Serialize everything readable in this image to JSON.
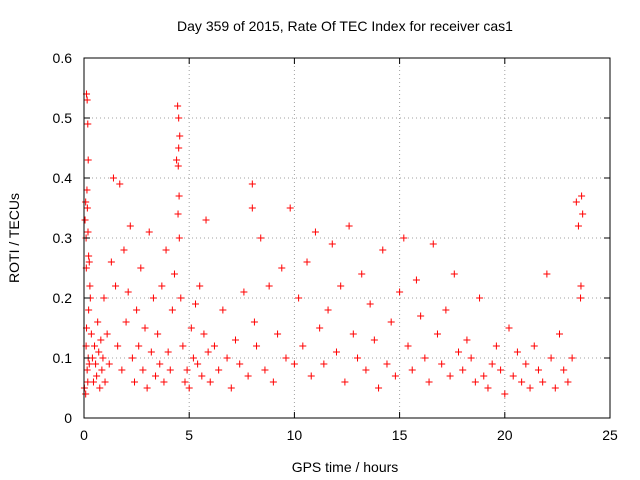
{
  "chart_data": {
    "type": "scatter",
    "title": "Day 359 of 2015, Rate Of TEC Index for receiver cas1",
    "xlabel": "GPS time / hours",
    "ylabel": "ROTI / TECUs",
    "xlim": [
      0,
      25
    ],
    "ylim": [
      0,
      0.6
    ],
    "xticks": [
      0,
      5,
      10,
      15,
      20,
      25
    ],
    "yticks": [
      0,
      0.1,
      0.2,
      0.3,
      0.4,
      0.5,
      0.6
    ],
    "xtick_labels": [
      "0",
      "5",
      "10",
      "15",
      "20",
      "25"
    ],
    "ytick_labels": [
      "0",
      "0.1",
      "0.2",
      "0.3",
      "0.4",
      "0.5",
      "0.6"
    ],
    "grid": true,
    "marker": "plus",
    "color": "#ff0000",
    "series": [
      {
        "x": [
          0.02,
          0.05,
          0.08,
          0.1,
          0.12,
          0.15,
          0.18,
          0.2,
          0.22,
          0.25,
          0.28,
          0.3,
          0.1,
          0.15,
          0.2,
          0.12,
          0.18,
          0.08,
          0.22,
          0.25,
          0.14,
          0.16,
          0.19,
          0.11,
          0.35,
          0.4,
          0.45,
          0.5,
          0.55,
          0.6,
          0.65,
          0.7,
          0.75,
          0.8,
          0.85,
          0.9,
          0.95,
          1.0,
          1.1,
          1.2,
          1.3,
          1.4,
          1.5,
          1.6,
          1.7,
          1.8,
          1.9,
          2.0,
          2.1,
          2.2,
          2.3,
          2.4,
          2.5,
          2.6,
          2.7,
          2.8,
          2.9,
          3.0,
          3.1,
          3.2,
          3.3,
          3.4,
          3.5,
          3.6,
          3.7,
          3.8,
          3.9,
          4.0,
          4.1,
          4.2,
          4.3,
          4.4,
          4.45,
          4.5,
          4.55,
          4.5,
          4.48,
          4.52,
          4.47,
          4.53,
          4.6,
          4.7,
          4.8,
          4.9,
          5.0,
          5.1,
          5.2,
          5.3,
          5.4,
          5.5,
          5.6,
          5.7,
          5.8,
          5.9,
          6.0,
          6.2,
          6.4,
          6.6,
          6.8,
          7.0,
          7.2,
          7.4,
          7.6,
          7.8,
          8.0,
          8.0,
          8.1,
          8.2,
          8.4,
          8.6,
          8.8,
          9.0,
          9.2,
          9.4,
          9.6,
          9.8,
          10.0,
          10.2,
          10.4,
          10.6,
          10.8,
          11.0,
          11.2,
          11.4,
          11.6,
          11.8,
          12.0,
          12.2,
          12.4,
          12.6,
          12.8,
          13.0,
          13.2,
          13.4,
          13.6,
          13.8,
          14.0,
          14.2,
          14.4,
          14.6,
          14.8,
          15.0,
          15.2,
          15.4,
          15.6,
          15.8,
          16.0,
          16.2,
          16.4,
          16.6,
          16.8,
          17.0,
          17.2,
          17.4,
          17.6,
          17.8,
          18.0,
          18.2,
          18.4,
          18.6,
          18.8,
          19.0,
          19.2,
          19.4,
          19.6,
          19.8,
          20.0,
          20.2,
          20.4,
          20.6,
          20.8,
          21.0,
          21.2,
          21.4,
          21.6,
          21.8,
          22.0,
          22.2,
          22.4,
          22.6,
          22.8,
          23.0,
          23.2,
          23.4,
          23.5,
          23.6,
          23.65,
          23.7,
          23.62
        ],
        "y": [
          0.05,
          0.33,
          0.36,
          0.3,
          0.54,
          0.53,
          0.49,
          0.43,
          0.27,
          0.26,
          0.22,
          0.2,
          0.12,
          0.08,
          0.1,
          0.15,
          0.06,
          0.04,
          0.18,
          0.09,
          0.38,
          0.35,
          0.31,
          0.25,
          0.14,
          0.1,
          0.06,
          0.12,
          0.09,
          0.07,
          0.16,
          0.11,
          0.05,
          0.13,
          0.08,
          0.1,
          0.2,
          0.06,
          0.14,
          0.09,
          0.26,
          0.4,
          0.22,
          0.12,
          0.39,
          0.08,
          0.28,
          0.16,
          0.21,
          0.32,
          0.1,
          0.06,
          0.18,
          0.12,
          0.25,
          0.08,
          0.15,
          0.05,
          0.31,
          0.11,
          0.2,
          0.07,
          0.14,
          0.09,
          0.22,
          0.06,
          0.28,
          0.11,
          0.08,
          0.18,
          0.24,
          0.43,
          0.52,
          0.5,
          0.47,
          0.45,
          0.42,
          0.37,
          0.34,
          0.3,
          0.2,
          0.12,
          0.06,
          0.08,
          0.05,
          0.15,
          0.1,
          0.19,
          0.09,
          0.22,
          0.07,
          0.14,
          0.33,
          0.11,
          0.06,
          0.12,
          0.08,
          0.18,
          0.1,
          0.05,
          0.13,
          0.09,
          0.21,
          0.07,
          0.39,
          0.35,
          0.16,
          0.12,
          0.3,
          0.08,
          0.22,
          0.06,
          0.14,
          0.25,
          0.1,
          0.35,
          0.09,
          0.2,
          0.12,
          0.26,
          0.07,
          0.31,
          0.15,
          0.09,
          0.18,
          0.29,
          0.11,
          0.22,
          0.06,
          0.32,
          0.14,
          0.1,
          0.24,
          0.08,
          0.19,
          0.13,
          0.05,
          0.28,
          0.09,
          0.16,
          0.07,
          0.21,
          0.3,
          0.12,
          0.08,
          0.23,
          0.17,
          0.1,
          0.06,
          0.29,
          0.14,
          0.09,
          0.18,
          0.07,
          0.24,
          0.11,
          0.08,
          0.13,
          0.1,
          0.06,
          0.2,
          0.07,
          0.05,
          0.09,
          0.12,
          0.08,
          0.04,
          0.15,
          0.07,
          0.11,
          0.06,
          0.09,
          0.05,
          0.12,
          0.08,
          0.06,
          0.24,
          0.1,
          0.05,
          0.14,
          0.08,
          0.06,
          0.1,
          0.36,
          0.32,
          0.2,
          0.37,
          0.34,
          0.22
        ]
      }
    ]
  }
}
